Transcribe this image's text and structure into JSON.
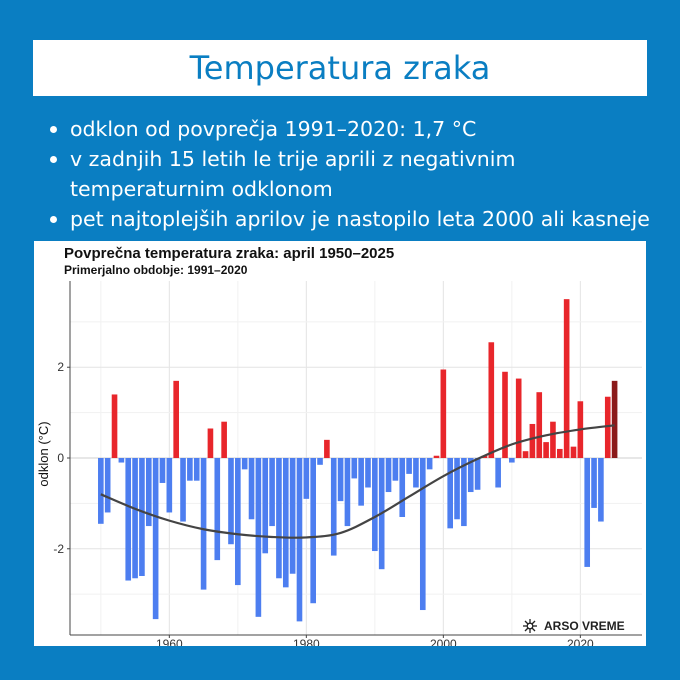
{
  "page": {
    "title": "Temperatura zraka",
    "bullets": [
      "odklon od povprečja 1991–2020: 1,7 °C",
      "v zadnjih 15 letih le trije aprili z negativnim temperaturnim odklonom",
      "pet najtoplejših aprilov je nastopilo leta 2000 ali kasneje"
    ],
    "logo_text": "ARSO VREME"
  },
  "colors": {
    "background": "#0a7ec2",
    "positive": "#e8262b",
    "negative": "#4d7ef0",
    "latest": "#8b1a1a",
    "trend": "#444444"
  },
  "chart_data": {
    "type": "bar",
    "title": "Povprečna temperatura zraka: april 1950–2025",
    "subtitle": "Primerjalno obdobje: 1991–2020",
    "xlabel": "",
    "ylabel": "odklon (°C)",
    "xlim": [
      1945.5,
      2029
    ],
    "ylim": [
      -3.9,
      3.9
    ],
    "xticks": [
      1960,
      1980,
      2000,
      2020
    ],
    "yticks": [
      -2,
      0,
      2
    ],
    "grid": true,
    "x": [
      1950,
      1951,
      1952,
      1953,
      1954,
      1955,
      1956,
      1957,
      1958,
      1959,
      1960,
      1961,
      1962,
      1963,
      1964,
      1965,
      1966,
      1967,
      1968,
      1969,
      1970,
      1971,
      1972,
      1973,
      1974,
      1975,
      1976,
      1977,
      1978,
      1979,
      1980,
      1981,
      1982,
      1983,
      1984,
      1985,
      1986,
      1987,
      1988,
      1989,
      1990,
      1991,
      1992,
      1993,
      1994,
      1995,
      1996,
      1997,
      1998,
      1999,
      2000,
      2001,
      2002,
      2003,
      2004,
      2005,
      2006,
      2007,
      2008,
      2009,
      2010,
      2011,
      2012,
      2013,
      2014,
      2015,
      2016,
      2017,
      2018,
      2019,
      2020,
      2021,
      2022,
      2023,
      2024,
      2025
    ],
    "values": [
      -1.45,
      -1.2,
      1.4,
      -0.1,
      -2.7,
      -2.65,
      -2.6,
      -1.5,
      -3.55,
      -0.55,
      -1.2,
      1.7,
      -1.4,
      -0.5,
      -0.5,
      -2.9,
      0.65,
      -2.25,
      0.8,
      -1.9,
      -2.8,
      -0.25,
      -1.35,
      -3.5,
      -2.1,
      -1.5,
      -2.65,
      -2.85,
      -2.55,
      -3.6,
      -0.9,
      -3.2,
      -0.15,
      0.4,
      -2.15,
      -0.95,
      -1.5,
      -0.45,
      -1.05,
      -0.65,
      -2.05,
      -2.45,
      -0.75,
      -0.5,
      -1.3,
      -0.35,
      -0.65,
      -3.35,
      -0.25,
      0.05,
      1.95,
      -1.55,
      -1.35,
      -1.5,
      -0.75,
      -0.7,
      0.05,
      2.55,
      -0.65,
      1.9,
      -0.1,
      1.75,
      0.15,
      0.75,
      1.45,
      0.35,
      0.8,
      0.2,
      3.5,
      0.25,
      1.25,
      -2.4,
      -1.1,
      -1.4,
      1.35,
      1.7
    ],
    "trend": [
      [
        1950,
        -0.8
      ],
      [
        1955,
        -1.12
      ],
      [
        1960,
        -1.38
      ],
      [
        1965,
        -1.57
      ],
      [
        1970,
        -1.68
      ],
      [
        1975,
        -1.74
      ],
      [
        1980,
        -1.75
      ],
      [
        1985,
        -1.65
      ],
      [
        1990,
        -1.3
      ],
      [
        1995,
        -0.85
      ],
      [
        2000,
        -0.4
      ],
      [
        2005,
        -0.02
      ],
      [
        2010,
        0.3
      ],
      [
        2015,
        0.5
      ],
      [
        2020,
        0.63
      ],
      [
        2025,
        0.72
      ]
    ]
  }
}
